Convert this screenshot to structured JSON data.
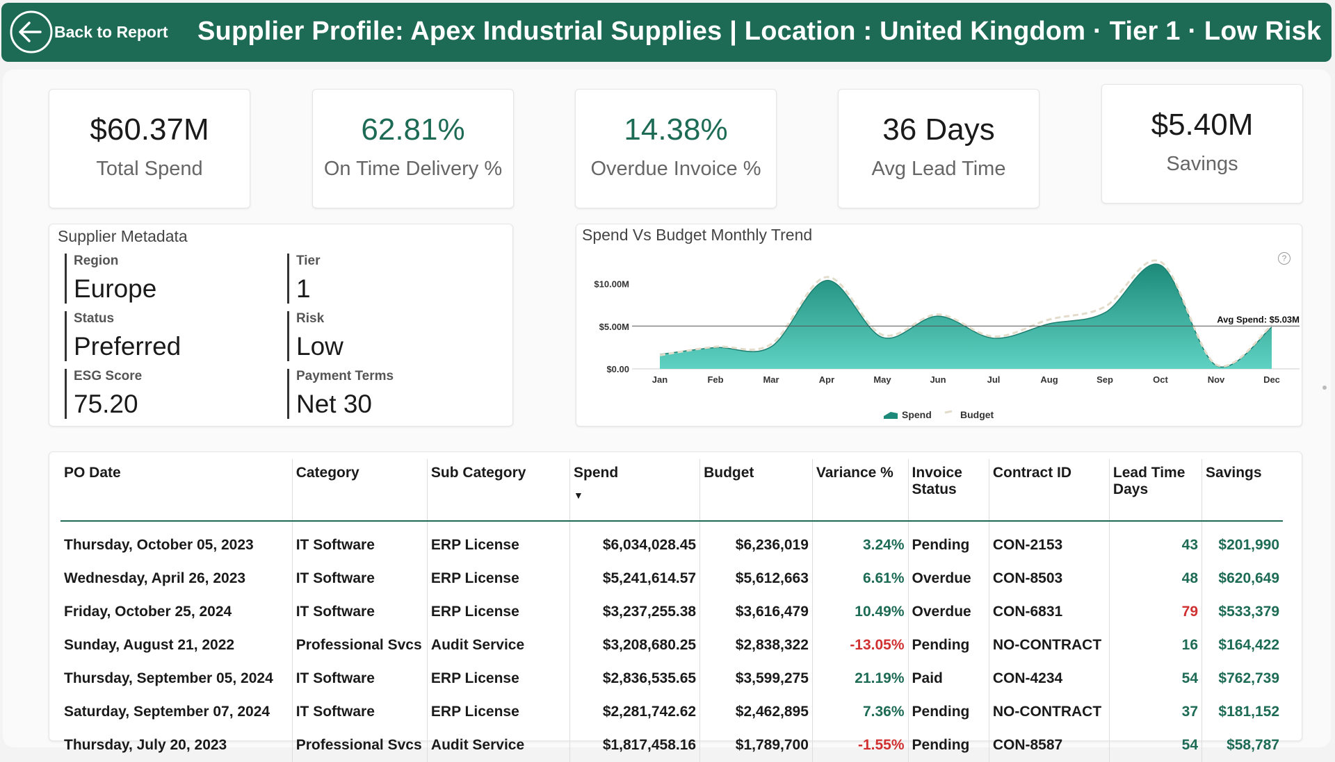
{
  "header": {
    "back_label": "Back to Report",
    "title": "Supplier Profile: Apex Industrial Supplies | Location : United Kingdom · Tier 1 · Low Risk"
  },
  "kpis": [
    {
      "value": "$60.37M",
      "label": "Total Spend"
    },
    {
      "value": "62.81%",
      "label": "On Time Delivery %"
    },
    {
      "value": "14.38%",
      "label": "Overdue Invoice %"
    },
    {
      "value": "36 Days",
      "label": "Avg Lead Time"
    },
    {
      "value": "$5.40M",
      "label": "Savings"
    }
  ],
  "metadata": {
    "title": "Supplier Metadata",
    "region_label": "Region",
    "region": "Europe",
    "tier_label": "Tier",
    "tier": "1",
    "status_label": "Status",
    "status": "Preferred",
    "risk_label": "Risk",
    "risk": "Low",
    "esg_label": "ESG Score",
    "esg": "75.20",
    "terms_label": "Payment Terms",
    "terms": "Net 30"
  },
  "chart_data": {
    "type": "area",
    "title": "Spend Vs Budget Monthly Trend",
    "categories": [
      "Jan",
      "Feb",
      "Mar",
      "Apr",
      "May",
      "Jun",
      "Jul",
      "Aug",
      "Sep",
      "Oct",
      "Nov",
      "Dec"
    ],
    "y_ticks": [
      "$0.00",
      "$5.00M",
      "$10.00M"
    ],
    "ylim": [
      0,
      12.5
    ],
    "series": [
      {
        "name": "Spend",
        "values": [
          1.7,
          2.5,
          2.6,
          10.4,
          3.7,
          6.2,
          3.6,
          5.3,
          6.6,
          12.2,
          0.4,
          4.9
        ]
      },
      {
        "name": "Budget",
        "values": [
          1.6,
          2.6,
          2.9,
          10.8,
          4.0,
          6.4,
          3.8,
          5.8,
          7.3,
          12.6,
          0.5,
          5.1
        ]
      }
    ],
    "reference_line": {
      "label": "Avg Spend: $5.03M",
      "value": 5.03
    },
    "legend": "bottom-center",
    "colors": {
      "spend": "#2aa896",
      "budget": "#e3dccb"
    }
  },
  "table": {
    "headers": [
      "PO Date",
      "Category",
      "Sub Category",
      "Spend",
      "Budget",
      "Variance %",
      "Invoice Status",
      "Contract ID",
      "Lead Time Days",
      "Savings"
    ],
    "rows": [
      [
        "Thursday, October 05, 2023",
        "IT Software",
        "ERP License",
        "$6,034,028.45",
        "$6,236,019",
        "3.24%",
        "Pending",
        "CON-2153",
        "43",
        "$201,990"
      ],
      [
        "Wednesday, April 26, 2023",
        "IT Software",
        "ERP License",
        "$5,241,614.57",
        "$5,612,663",
        "6.61%",
        "Overdue",
        "CON-8503",
        "48",
        "$620,649"
      ],
      [
        "Friday, October 25, 2024",
        "IT Software",
        "ERP License",
        "$3,237,255.38",
        "$3,616,479",
        "10.49%",
        "Overdue",
        "CON-6831",
        "79",
        "$533,379"
      ],
      [
        "Sunday, August 21, 2022",
        "Professional Svcs",
        "Audit Service",
        "$3,208,680.25",
        "$2,838,322",
        "-13.05%",
        "Pending",
        "NO-CONTRACT",
        "16",
        "$164,422"
      ],
      [
        "Thursday, September 05, 2024",
        "IT Software",
        "ERP License",
        "$2,836,535.65",
        "$3,599,275",
        "21.19%",
        "Paid",
        "CON-4234",
        "54",
        "$762,739"
      ],
      [
        "Saturday, September 07, 2024",
        "IT Software",
        "ERP License",
        "$2,281,742.62",
        "$2,462,895",
        "7.36%",
        "Pending",
        "NO-CONTRACT",
        "37",
        "$181,152"
      ],
      [
        "Thursday, July 20, 2023",
        "Professional Svcs",
        "Audit Service",
        "$1,817,458.16",
        "$1,789,700",
        "-1.55%",
        "Pending",
        "CON-8587",
        "54",
        "$58,787"
      ]
    ]
  }
}
